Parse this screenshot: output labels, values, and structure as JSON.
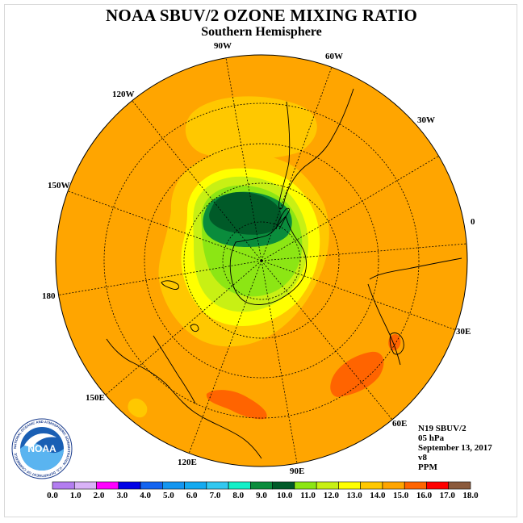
{
  "title": "NOAA SBUV/2 OZONE MIXING RATIO",
  "subtitle": "Southern Hemisphere",
  "longitude_labels": [
    "0",
    "30W",
    "60W",
    "90W",
    "120W",
    "150W",
    "180",
    "150E",
    "120E",
    "90E",
    "60E",
    "30E"
  ],
  "info": {
    "satellite": "N19 SBUV/2",
    "level": "05 hPa",
    "date": "September 13, 2017",
    "version": "v8",
    "units": "PPM"
  },
  "logo": {
    "text": "NOAA",
    "ring_text": "NATIONAL OCEANIC AND ATMOSPHERIC ADMINISTRATION · U.S. DEPARTMENT OF COMMERCE"
  },
  "colorbar": {
    "ticks": [
      "0.0",
      "1.0",
      "2.0",
      "3.0",
      "4.0",
      "5.0",
      "6.0",
      "7.0",
      "8.0",
      "9.0",
      "10.0",
      "11.0",
      "12.0",
      "13.0",
      "14.0",
      "15.0",
      "16.0",
      "17.0",
      "18.0"
    ],
    "colors": [
      "#b37df0",
      "#d9b2f7",
      "#ff00ff",
      "#0000e6",
      "#1464f0",
      "#1496f0",
      "#14aaf0",
      "#32c8f0",
      "#14f0c8",
      "#0a8c3c",
      "#005a28",
      "#8ce614",
      "#c8f014",
      "#ffff00",
      "#ffc800",
      "#ffa500",
      "#ff6400",
      "#ff0000",
      "#8b5a3c"
    ]
  }
}
